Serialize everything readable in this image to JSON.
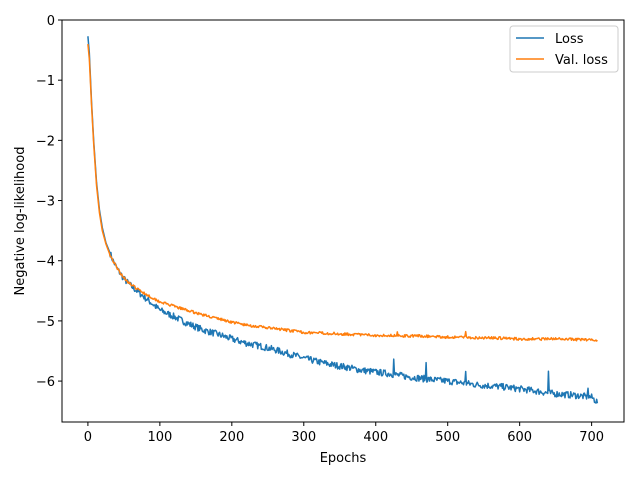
{
  "chart_data": {
    "type": "line",
    "title": "",
    "xlabel": "Epochs",
    "ylabel": "Negative log-likelihood",
    "xlim": [
      -36,
      745
    ],
    "ylim": [
      -6.68,
      0.0
    ],
    "x_ticks": [
      0,
      100,
      200,
      300,
      400,
      500,
      600,
      700
    ],
    "y_ticks": [
      0,
      -1,
      -2,
      -3,
      -4,
      -5,
      -6
    ],
    "y_tick_labels": [
      "0",
      "−1",
      "−2",
      "−3",
      "−4",
      "−5",
      "−6"
    ],
    "grid": false,
    "legend_position": "top-right",
    "x_max_epoch": 708,
    "series": [
      {
        "name": "Loss",
        "color": "#1f77b4",
        "noise": 0.055,
        "seed": 7,
        "spikes": [
          [
            425,
            0.3
          ],
          [
            470,
            0.28
          ],
          [
            525,
            0.22
          ],
          [
            640,
            0.35
          ],
          [
            695,
            0.18
          ]
        ],
        "points": [
          [
            0,
            -0.27
          ],
          [
            2,
            -0.55
          ],
          [
            5,
            -1.35
          ],
          [
            8,
            -2.0
          ],
          [
            12,
            -2.7
          ],
          [
            16,
            -3.15
          ],
          [
            20,
            -3.45
          ],
          [
            25,
            -3.7
          ],
          [
            30,
            -3.85
          ],
          [
            35,
            -4.0
          ],
          [
            40,
            -4.12
          ],
          [
            50,
            -4.3
          ],
          [
            60,
            -4.42
          ],
          [
            70,
            -4.52
          ],
          [
            80,
            -4.62
          ],
          [
            90,
            -4.72
          ],
          [
            100,
            -4.82
          ],
          [
            120,
            -4.93
          ],
          [
            140,
            -5.05
          ],
          [
            160,
            -5.15
          ],
          [
            180,
            -5.22
          ],
          [
            200,
            -5.3
          ],
          [
            220,
            -5.37
          ],
          [
            240,
            -5.42
          ],
          [
            260,
            -5.48
          ],
          [
            280,
            -5.55
          ],
          [
            300,
            -5.62
          ],
          [
            320,
            -5.68
          ],
          [
            340,
            -5.73
          ],
          [
            360,
            -5.77
          ],
          [
            380,
            -5.82
          ],
          [
            400,
            -5.85
          ],
          [
            420,
            -5.88
          ],
          [
            440,
            -5.92
          ],
          [
            460,
            -5.95
          ],
          [
            480,
            -5.98
          ],
          [
            500,
            -6.0
          ],
          [
            520,
            -6.03
          ],
          [
            540,
            -6.06
          ],
          [
            560,
            -6.08
          ],
          [
            580,
            -6.1
          ],
          [
            600,
            -6.13
          ],
          [
            620,
            -6.16
          ],
          [
            640,
            -6.2
          ],
          [
            660,
            -6.22
          ],
          [
            680,
            -6.24
          ],
          [
            700,
            -6.27
          ],
          [
            708,
            -6.35
          ]
        ]
      },
      {
        "name": "Val. loss",
        "color": "#ff7f0e",
        "noise": 0.022,
        "seed": 19,
        "spikes": [
          [
            430,
            0.08
          ],
          [
            525,
            0.1
          ]
        ],
        "points": [
          [
            0,
            -0.4
          ],
          [
            2,
            -0.65
          ],
          [
            5,
            -1.4
          ],
          [
            8,
            -2.05
          ],
          [
            12,
            -2.75
          ],
          [
            16,
            -3.2
          ],
          [
            20,
            -3.5
          ],
          [
            25,
            -3.72
          ],
          [
            30,
            -3.88
          ],
          [
            35,
            -4.0
          ],
          [
            40,
            -4.12
          ],
          [
            50,
            -4.28
          ],
          [
            60,
            -4.4
          ],
          [
            70,
            -4.48
          ],
          [
            80,
            -4.55
          ],
          [
            90,
            -4.62
          ],
          [
            100,
            -4.68
          ],
          [
            120,
            -4.76
          ],
          [
            140,
            -4.83
          ],
          [
            160,
            -4.9
          ],
          [
            180,
            -4.96
          ],
          [
            200,
            -5.02
          ],
          [
            220,
            -5.07
          ],
          [
            240,
            -5.1
          ],
          [
            260,
            -5.13
          ],
          [
            280,
            -5.16
          ],
          [
            300,
            -5.19
          ],
          [
            320,
            -5.2
          ],
          [
            340,
            -5.21
          ],
          [
            360,
            -5.22
          ],
          [
            380,
            -5.23
          ],
          [
            400,
            -5.24
          ],
          [
            420,
            -5.24
          ],
          [
            440,
            -5.25
          ],
          [
            460,
            -5.25
          ],
          [
            480,
            -5.26
          ],
          [
            500,
            -5.27
          ],
          [
            520,
            -5.27
          ],
          [
            540,
            -5.28
          ],
          [
            560,
            -5.28
          ],
          [
            580,
            -5.29
          ],
          [
            600,
            -5.3
          ],
          [
            620,
            -5.3
          ],
          [
            640,
            -5.3
          ],
          [
            660,
            -5.3
          ],
          [
            680,
            -5.31
          ],
          [
            700,
            -5.31
          ],
          [
            708,
            -5.32
          ]
        ]
      }
    ]
  }
}
